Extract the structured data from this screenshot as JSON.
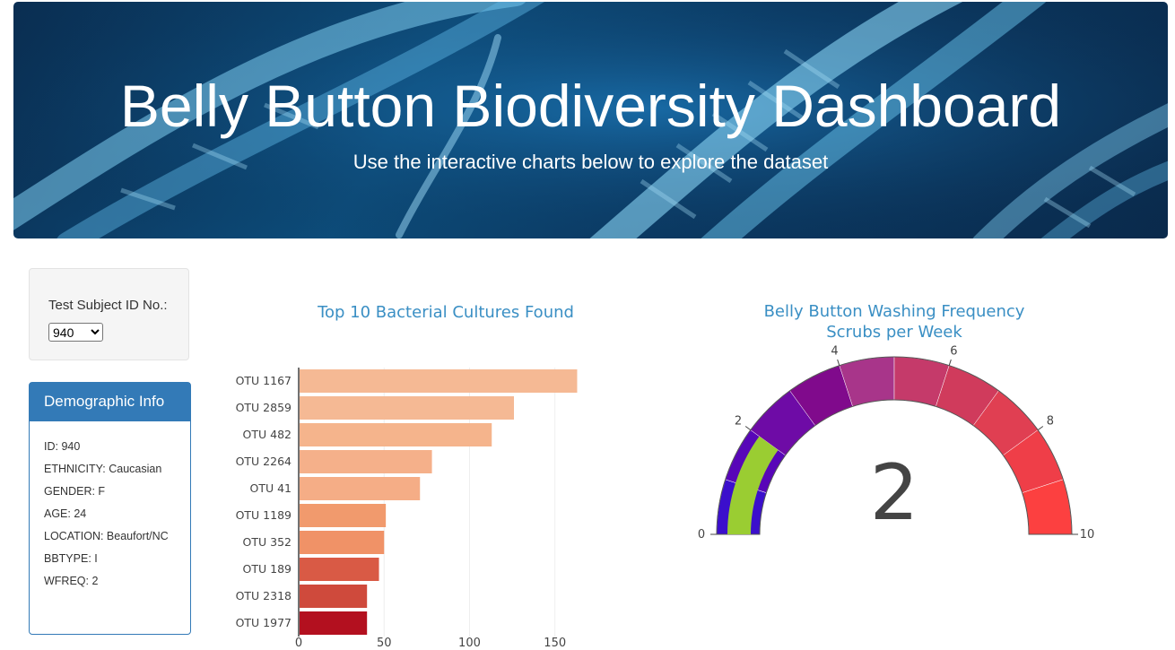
{
  "header": {
    "title": "Belly Button Biodiversity Dashboard",
    "subtitle": "Use the interactive charts below to explore the dataset"
  },
  "selector": {
    "label": "Test Subject ID No.:",
    "selected": "940"
  },
  "demographics": {
    "heading": "Demographic Info",
    "rows": [
      "ID: 940",
      "ETHNICITY: Caucasian",
      "GENDER: F",
      "AGE: 24",
      "LOCATION: Beaufort/NC",
      "BBTYPE: I",
      "WFREQ: 2"
    ]
  },
  "colors": {
    "accent": "#337ab7",
    "chart_title": "#3a8fc4",
    "gauge_needle": "#9acd32"
  },
  "chart_data": [
    {
      "type": "bar",
      "orientation": "horizontal",
      "title": "Top 10 Bacterial Cultures Found",
      "categories": [
        "OTU 1167",
        "OTU 2859",
        "OTU 482",
        "OTU 2264",
        "OTU 41",
        "OTU 1189",
        "OTU 352",
        "OTU 189",
        "OTU 2318",
        "OTU 1977"
      ],
      "values": [
        163,
        126,
        113,
        78,
        71,
        51,
        50,
        47,
        40,
        40
      ],
      "bar_colors": [
        "#f5b994",
        "#f5b994",
        "#f5b48c",
        "#f5b08a",
        "#f5ad86",
        "#f19a6d",
        "#f09267",
        "#d95a45",
        "#cf4a3c",
        "#b3101f"
      ],
      "xticks": [
        0,
        50,
        100,
        150
      ],
      "xlim": [
        0,
        168
      ]
    },
    {
      "type": "gauge",
      "title": "Belly Button Washing Frequency",
      "subtitle": "Scrubs per Week",
      "value": 2,
      "range": [
        0,
        10
      ],
      "ticks": [
        0,
        2,
        4,
        6,
        8,
        10
      ],
      "steps": [
        "#3b0fcc",
        "#5806b8",
        "#6e0ba6",
        "#800a8c",
        "#a8358a",
        "#c53a6a",
        "#d03b5c",
        "#e03f52",
        "#ef3e48",
        "#fc4040"
      ]
    }
  ]
}
